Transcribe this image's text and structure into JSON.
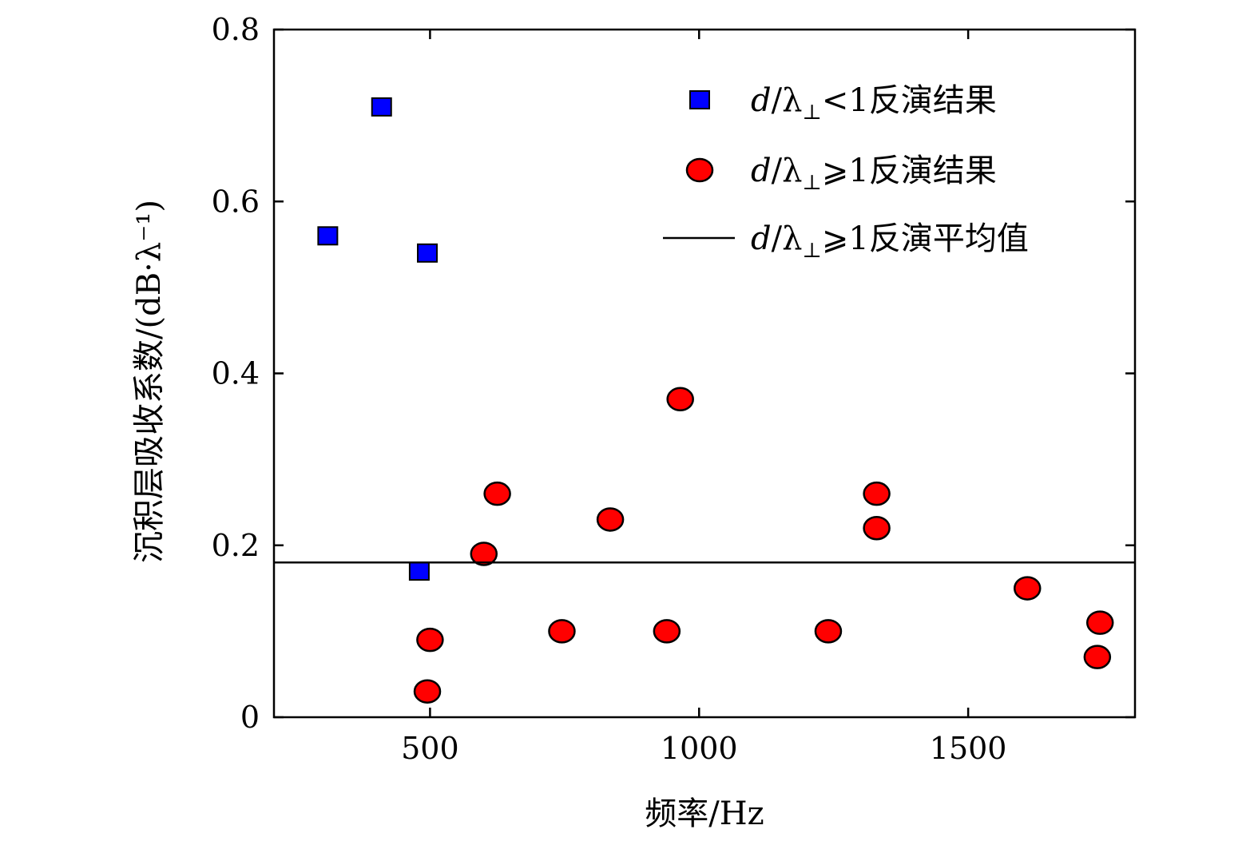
{
  "chart_data": {
    "type": "scatter",
    "title": "",
    "xlabel": "频率/Hz",
    "ylabel": "沉积层吸收系数/(dB·λ⁻¹)",
    "xlim": [
      210,
      1810
    ],
    "ylim": [
      0,
      0.8
    ],
    "xticks": [
      500,
      1000,
      1500
    ],
    "xtick_labels": [
      "500",
      "1000",
      "1500"
    ],
    "yticks": [
      0,
      0.2,
      0.4,
      0.6,
      0.8
    ],
    "ytick_labels": [
      "0",
      "0.2",
      "0.4",
      "0.6",
      "0.8"
    ],
    "grid": false,
    "legend_position": "top-right",
    "series": [
      {
        "name_parts": [
          "d",
          "/λ",
          "⊥",
          "<1反演结果"
        ],
        "marker": "square",
        "color": "#0000ff",
        "points": [
          {
            "x": 310,
            "y": 0.56
          },
          {
            "x": 410,
            "y": 0.71
          },
          {
            "x": 495,
            "y": 0.54
          },
          {
            "x": 480,
            "y": 0.17
          }
        ]
      },
      {
        "name_parts": [
          "d",
          "/λ",
          "⊥",
          "⩾1反演结果"
        ],
        "marker": "circle",
        "color": "#ff0000",
        "points": [
          {
            "x": 500,
            "y": 0.09
          },
          {
            "x": 495,
            "y": 0.03
          },
          {
            "x": 600,
            "y": 0.19
          },
          {
            "x": 625,
            "y": 0.26
          },
          {
            "x": 745,
            "y": 0.1
          },
          {
            "x": 835,
            "y": 0.23
          },
          {
            "x": 940,
            "y": 0.1
          },
          {
            "x": 965,
            "y": 0.37
          },
          {
            "x": 1240,
            "y": 0.1
          },
          {
            "x": 1330,
            "y": 0.26
          },
          {
            "x": 1330,
            "y": 0.22
          },
          {
            "x": 1610,
            "y": 0.15
          },
          {
            "x": 1745,
            "y": 0.11
          },
          {
            "x": 1740,
            "y": 0.07
          }
        ]
      },
      {
        "name_parts": [
          "d",
          "/λ",
          "⊥",
          "⩾1反演平均值"
        ],
        "marker": "line",
        "color": "#000000",
        "hline_y": 0.18
      }
    ]
  }
}
